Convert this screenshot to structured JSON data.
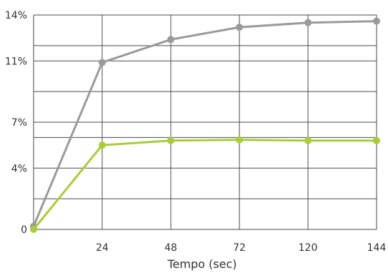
{
  "chart_data": {
    "type": "line",
    "title": "",
    "xlabel": "Tempo (sec)",
    "ylabel": "",
    "x_ticks": [
      "",
      "24",
      "48",
      "72",
      "120",
      "144"
    ],
    "y_ticks": [
      {
        "value": 0,
        "label": "0"
      },
      {
        "value": 4,
        "label": "4%"
      },
      {
        "value": 7,
        "label": "7%"
      },
      {
        "value": 11,
        "label": "11%"
      },
      {
        "value": 14,
        "label": "14%"
      }
    ],
    "y_gridlines": [
      0,
      2,
      4,
      6,
      7,
      9,
      11,
      12,
      14
    ],
    "ylim": [
      0,
      14
    ],
    "grid": true,
    "legend": "none",
    "series": [
      {
        "color": "#9a9a9a",
        "values": [
          0.2,
          10.9,
          12.4,
          13.2,
          13.5,
          13.6
        ]
      },
      {
        "color": "#a9cc3c",
        "values": [
          0.0,
          5.5,
          5.8,
          5.85,
          5.8,
          5.8
        ]
      }
    ]
  }
}
